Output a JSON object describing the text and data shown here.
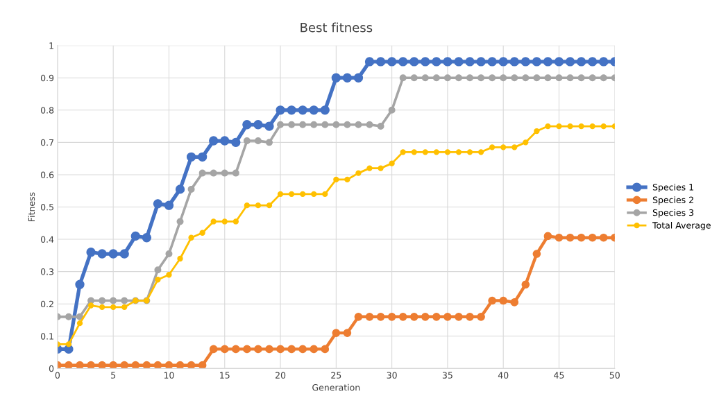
{
  "chart_data": {
    "type": "line",
    "title": "Best fitness",
    "xlabel": "Generation",
    "ylabel": "Fitness",
    "x": [
      0,
      1,
      2,
      3,
      4,
      5,
      6,
      7,
      8,
      9,
      10,
      11,
      12,
      13,
      14,
      15,
      16,
      17,
      18,
      19,
      20,
      21,
      22,
      23,
      24,
      25,
      26,
      27,
      28,
      29,
      30,
      31,
      32,
      33,
      34,
      35,
      36,
      37,
      38,
      39,
      40,
      41,
      42,
      43,
      44,
      45,
      46,
      47,
      48,
      49,
      50
    ],
    "series": [
      {
        "name": "Species 1",
        "color": "#4472c4",
        "values": [
          0.06,
          0.06,
          0.26,
          0.36,
          0.355,
          0.355,
          0.355,
          0.41,
          0.405,
          0.51,
          0.505,
          0.555,
          0.655,
          0.655,
          0.705,
          0.705,
          0.7,
          0.755,
          0.755,
          0.75,
          0.8,
          0.8,
          0.8,
          0.8,
          0.8,
          0.9,
          0.9,
          0.9,
          0.95,
          0.95,
          0.95,
          0.95,
          0.95,
          0.95,
          0.95,
          0.95,
          0.95,
          0.95,
          0.95,
          0.95,
          0.95,
          0.95,
          0.95,
          0.95,
          0.95,
          0.95,
          0.95,
          0.95,
          0.95,
          0.95,
          0.95
        ]
      },
      {
        "name": "Species 2",
        "color": "#ed7d31",
        "values": [
          0.01,
          0.01,
          0.01,
          0.01,
          0.01,
          0.01,
          0.01,
          0.01,
          0.01,
          0.01,
          0.01,
          0.01,
          0.01,
          0.01,
          0.06,
          0.06,
          0.06,
          0.06,
          0.06,
          0.06,
          0.06,
          0.06,
          0.06,
          0.06,
          0.06,
          0.11,
          0.11,
          0.16,
          0.16,
          0.16,
          0.16,
          0.16,
          0.16,
          0.16,
          0.16,
          0.16,
          0.16,
          0.16,
          0.16,
          0.21,
          0.21,
          0.205,
          0.26,
          0.355,
          0.41,
          0.405,
          0.405,
          0.405,
          0.405,
          0.405,
          0.405
        ]
      },
      {
        "name": "Species 3",
        "color": "#a5a5a5",
        "values": [
          0.16,
          0.16,
          0.16,
          0.21,
          0.21,
          0.21,
          0.21,
          0.21,
          0.21,
          0.305,
          0.355,
          0.455,
          0.555,
          0.605,
          0.605,
          0.605,
          0.605,
          0.705,
          0.705,
          0.7,
          0.755,
          0.755,
          0.755,
          0.755,
          0.755,
          0.755,
          0.755,
          0.755,
          0.755,
          0.75,
          0.8,
          0.9,
          0.9,
          0.9,
          0.9,
          0.9,
          0.9,
          0.9,
          0.9,
          0.9,
          0.9,
          0.9,
          0.9,
          0.9,
          0.9,
          0.9,
          0.9,
          0.9,
          0.9,
          0.9,
          0.9
        ]
      },
      {
        "name": "Total Average",
        "color": "#ffc000",
        "values": [
          0.075,
          0.075,
          0.14,
          0.195,
          0.19,
          0.19,
          0.19,
          0.21,
          0.21,
          0.275,
          0.29,
          0.34,
          0.405,
          0.42,
          0.455,
          0.455,
          0.455,
          0.505,
          0.505,
          0.505,
          0.54,
          0.54,
          0.54,
          0.54,
          0.54,
          0.585,
          0.585,
          0.605,
          0.62,
          0.62,
          0.635,
          0.67,
          0.67,
          0.67,
          0.67,
          0.67,
          0.67,
          0.67,
          0.67,
          0.685,
          0.685,
          0.685,
          0.7,
          0.735,
          0.75,
          0.75,
          0.75,
          0.75,
          0.75,
          0.75,
          0.75
        ]
      }
    ],
    "xlim": [
      0,
      50
    ],
    "xticks": [
      0,
      5,
      10,
      15,
      20,
      25,
      30,
      35,
      40,
      45,
      50
    ],
    "ylim": [
      0,
      1
    ],
    "yticks": [
      0,
      0.1,
      0.2,
      0.3,
      0.4,
      0.5,
      0.6,
      0.7,
      0.8,
      0.9,
      1
    ],
    "grid": true,
    "legend": "right",
    "marker": "circle",
    "line_style": "solid"
  }
}
